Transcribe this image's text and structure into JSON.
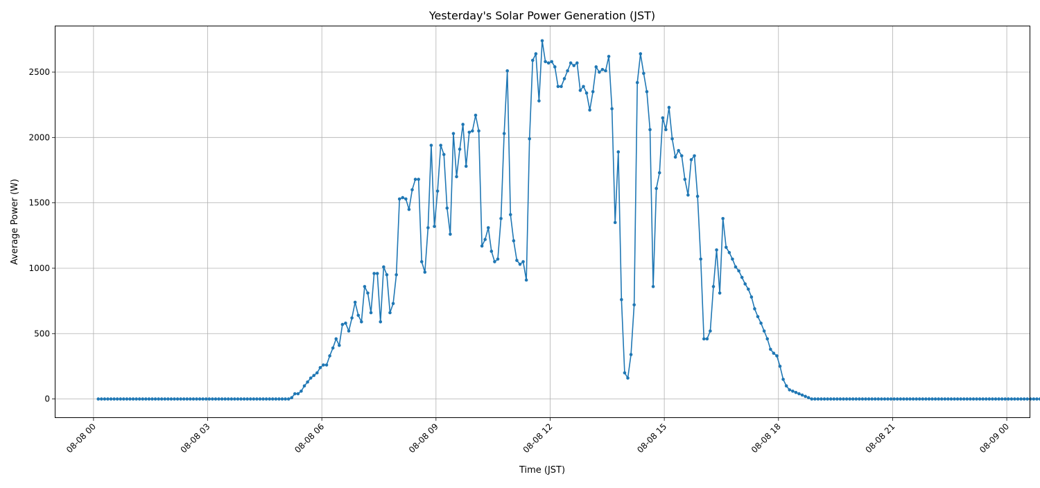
{
  "chart_data": {
    "type": "line",
    "title": "Yesterday's Solar Power Generation (JST)",
    "xlabel": "Time (JST)",
    "ylabel": "Average Power (W)",
    "x_tick_labels": [
      "08-08 00",
      "08-08 03",
      "08-08 06",
      "08-08 09",
      "08-08 12",
      "08-08 15",
      "08-08 18",
      "08-08 21",
      "08-09 00"
    ],
    "y_tick_labels": [
      "0",
      "500",
      "1000",
      "1500",
      "2000",
      "2500"
    ],
    "x_range_hours": [
      -1.0,
      24.6
    ],
    "ylim": [
      -140,
      2850
    ],
    "grid": true,
    "line_color": "#1f77b4",
    "series": [
      {
        "x_start_hour": 0.125,
        "x_step_hours": 0.08333,
        "values": [
          0,
          0,
          0,
          0,
          0,
          0,
          0,
          0,
          0,
          0,
          0,
          0,
          0,
          0,
          0,
          0,
          0,
          0,
          0,
          0,
          0,
          0,
          0,
          0,
          0,
          0,
          0,
          0,
          0,
          0,
          0,
          0,
          0,
          0,
          0,
          0,
          0,
          0,
          0,
          0,
          0,
          0,
          0,
          0,
          0,
          0,
          0,
          0,
          0,
          0,
          0,
          0,
          0,
          0,
          0,
          0,
          0,
          0,
          0,
          0,
          0,
          10,
          40,
          40,
          60,
          100,
          130,
          160,
          180,
          200,
          240,
          260,
          260,
          330,
          390,
          460,
          410,
          570,
          580,
          520,
          620,
          740,
          640,
          590,
          860,
          810,
          660,
          960,
          960,
          590,
          1010,
          950,
          660,
          730,
          950,
          1530,
          1540,
          1530,
          1450,
          1600,
          1680,
          1680,
          1050,
          970,
          1310,
          1940,
          1320,
          1590,
          1940,
          1870,
          1460,
          1260,
          2030,
          1700,
          1910,
          2100,
          1780,
          2040,
          2050,
          2170,
          2050,
          1170,
          1220,
          1310,
          1130,
          1050,
          1070,
          1380,
          2030,
          2510,
          1410,
          1210,
          1060,
          1030,
          1050,
          910,
          1990,
          2590,
          2640,
          2280,
          2740,
          2580,
          2570,
          2580,
          2540,
          2390,
          2390,
          2450,
          2510,
          2570,
          2550,
          2570,
          2360,
          2390,
          2340,
          2210,
          2350,
          2540,
          2500,
          2520,
          2510,
          2620,
          2220,
          1350,
          1890,
          760,
          200,
          160,
          340,
          720,
          2420,
          2640,
          2490,
          2350,
          2060,
          860,
          1610,
          1730,
          2150,
          2060,
          2230,
          1990,
          1850,
          1900,
          1860,
          1680,
          1560,
          1830,
          1860,
          1550,
          1070,
          460,
          460,
          520,
          860,
          1140,
          810,
          1380,
          1160,
          1120,
          1070,
          1010,
          980,
          930,
          880,
          840,
          780,
          690,
          630,
          580,
          520,
          460,
          380,
          350,
          330,
          250,
          150,
          100,
          70,
          60,
          50,
          40,
          30,
          20,
          10,
          0,
          0,
          0,
          0,
          0,
          0,
          0,
          0,
          0,
          0,
          0,
          0,
          0,
          0,
          0,
          0,
          0,
          0,
          0,
          0,
          0,
          0,
          0,
          0,
          0,
          0,
          0,
          0,
          0,
          0,
          0,
          0,
          0,
          0,
          0,
          0,
          0,
          0,
          0,
          0,
          0,
          0,
          0,
          0,
          0,
          0,
          0,
          0,
          0,
          0,
          0,
          0,
          0,
          0,
          0,
          0,
          0,
          0,
          0,
          0,
          0,
          0,
          0,
          0,
          0,
          0,
          0,
          0,
          0,
          0,
          0,
          0,
          0
        ]
      }
    ]
  }
}
